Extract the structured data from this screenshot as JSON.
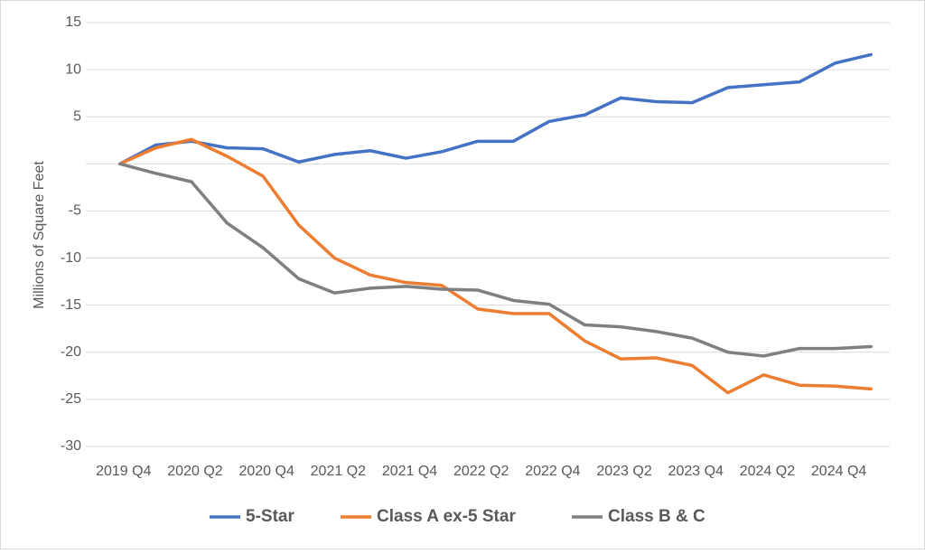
{
  "chart_data": {
    "type": "line",
    "y_label": "Millions of Square Feet",
    "categories": [
      "2019 Q4",
      null,
      "2020 Q2",
      null,
      "2020 Q4",
      null,
      "2021 Q2",
      null,
      "2021 Q4",
      null,
      "2022 Q2",
      null,
      "2022 Q4",
      null,
      "2023 Q2",
      null,
      "2023 Q4",
      null,
      "2024 Q2",
      null,
      "2024 Q4",
      null
    ],
    "series": [
      {
        "name": "5-Star",
        "color": "#4472c4",
        "values": [
          0,
          2.0,
          2.4,
          1.7,
          1.6,
          0.2,
          1.0,
          1.4,
          0.6,
          1.3,
          2.4,
          2.4,
          4.5,
          5.2,
          7.0,
          6.6,
          6.5,
          8.1,
          8.4,
          8.7,
          10.7,
          11.6
        ]
      },
      {
        "name": "Class A ex-5 Star",
        "color": "#ed7d31",
        "values": [
          0,
          1.7,
          2.6,
          0.8,
          -1.3,
          -6.5,
          -10.0,
          -11.8,
          -12.6,
          -12.9,
          -15.4,
          -15.9,
          -15.9,
          -18.8,
          -20.7,
          -20.6,
          -21.4,
          -24.3,
          -22.4,
          -23.5,
          -23.6,
          -23.9
        ]
      },
      {
        "name": "Class B & C",
        "color": "#7f7f7f",
        "values": [
          0,
          -1.0,
          -1.9,
          -6.3,
          -8.9,
          -12.2,
          -13.7,
          -13.2,
          -13.0,
          -13.3,
          -13.4,
          -14.5,
          -14.9,
          -17.1,
          -17.3,
          -17.8,
          -18.5,
          -20.0,
          -20.4,
          -19.6,
          -19.6,
          -19.4
        ]
      }
    ],
    "ylim": [
      -30,
      15
    ],
    "yticks": [
      -30,
      -25,
      -20,
      -15,
      -10,
      -5,
      {
        "value": 0,
        "label": null
      },
      5,
      10,
      15
    ],
    "grid": true,
    "legend": "bottom"
  }
}
